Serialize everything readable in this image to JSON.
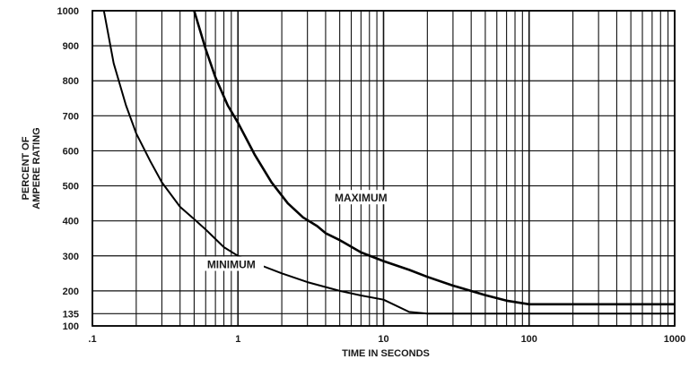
{
  "chart_data": {
    "type": "line",
    "xlabel": "TIME IN SECONDS",
    "ylabel": [
      "PERCENT OF",
      "AMPERE RATING"
    ],
    "x_scale": "log",
    "xlim": [
      0.1,
      1000
    ],
    "ylim": [
      100,
      1000
    ],
    "grid": true,
    "x_tick_labels": [
      ".1",
      "1",
      "10",
      "100",
      "1000"
    ],
    "y_ticks": [
      {
        "value": 100,
        "label": "100"
      },
      {
        "value": 135,
        "label": "135"
      },
      {
        "value": 200,
        "label": "200"
      },
      {
        "value": 300,
        "label": "300"
      },
      {
        "value": 400,
        "label": "400"
      },
      {
        "value": 500,
        "label": "500"
      },
      {
        "value": 600,
        "label": "600"
      },
      {
        "value": 700,
        "label": "700"
      },
      {
        "value": 800,
        "label": "800"
      },
      {
        "value": 900,
        "label": "900"
      },
      {
        "value": 1000,
        "label": "1000"
      }
    ],
    "series": [
      {
        "name": "MAXIMUM",
        "x": [
          0.5,
          0.6,
          0.7,
          0.85,
          1,
          1.3,
          1.7,
          2.2,
          2.8,
          3.5,
          4,
          5,
          7,
          10,
          15,
          20,
          30,
          50,
          70,
          100,
          200,
          500,
          1000
        ],
        "y": [
          1000,
          890,
          810,
          730,
          680,
          590,
          510,
          450,
          410,
          385,
          365,
          345,
          310,
          285,
          260,
          240,
          215,
          188,
          172,
          162,
          162,
          162,
          162
        ]
      },
      {
        "name": "MINIMUM",
        "x": [
          0.12,
          0.14,
          0.17,
          0.2,
          0.25,
          0.3,
          0.4,
          0.5,
          0.6,
          0.8,
          1,
          1.5,
          2,
          3,
          5,
          7,
          10,
          15,
          20,
          30,
          50,
          100,
          200,
          500,
          1000
        ],
        "y": [
          1000,
          850,
          730,
          650,
          570,
          510,
          440,
          405,
          375,
          325,
          300,
          270,
          250,
          225,
          200,
          187,
          175,
          140,
          135,
          135,
          135,
          135,
          135,
          135,
          135
        ]
      }
    ],
    "annotations": [
      {
        "text": "MAXIMUM",
        "x": 7,
        "y": 460
      },
      {
        "text": "MINIMUM",
        "x": 0.9,
        "y": 270
      }
    ]
  }
}
